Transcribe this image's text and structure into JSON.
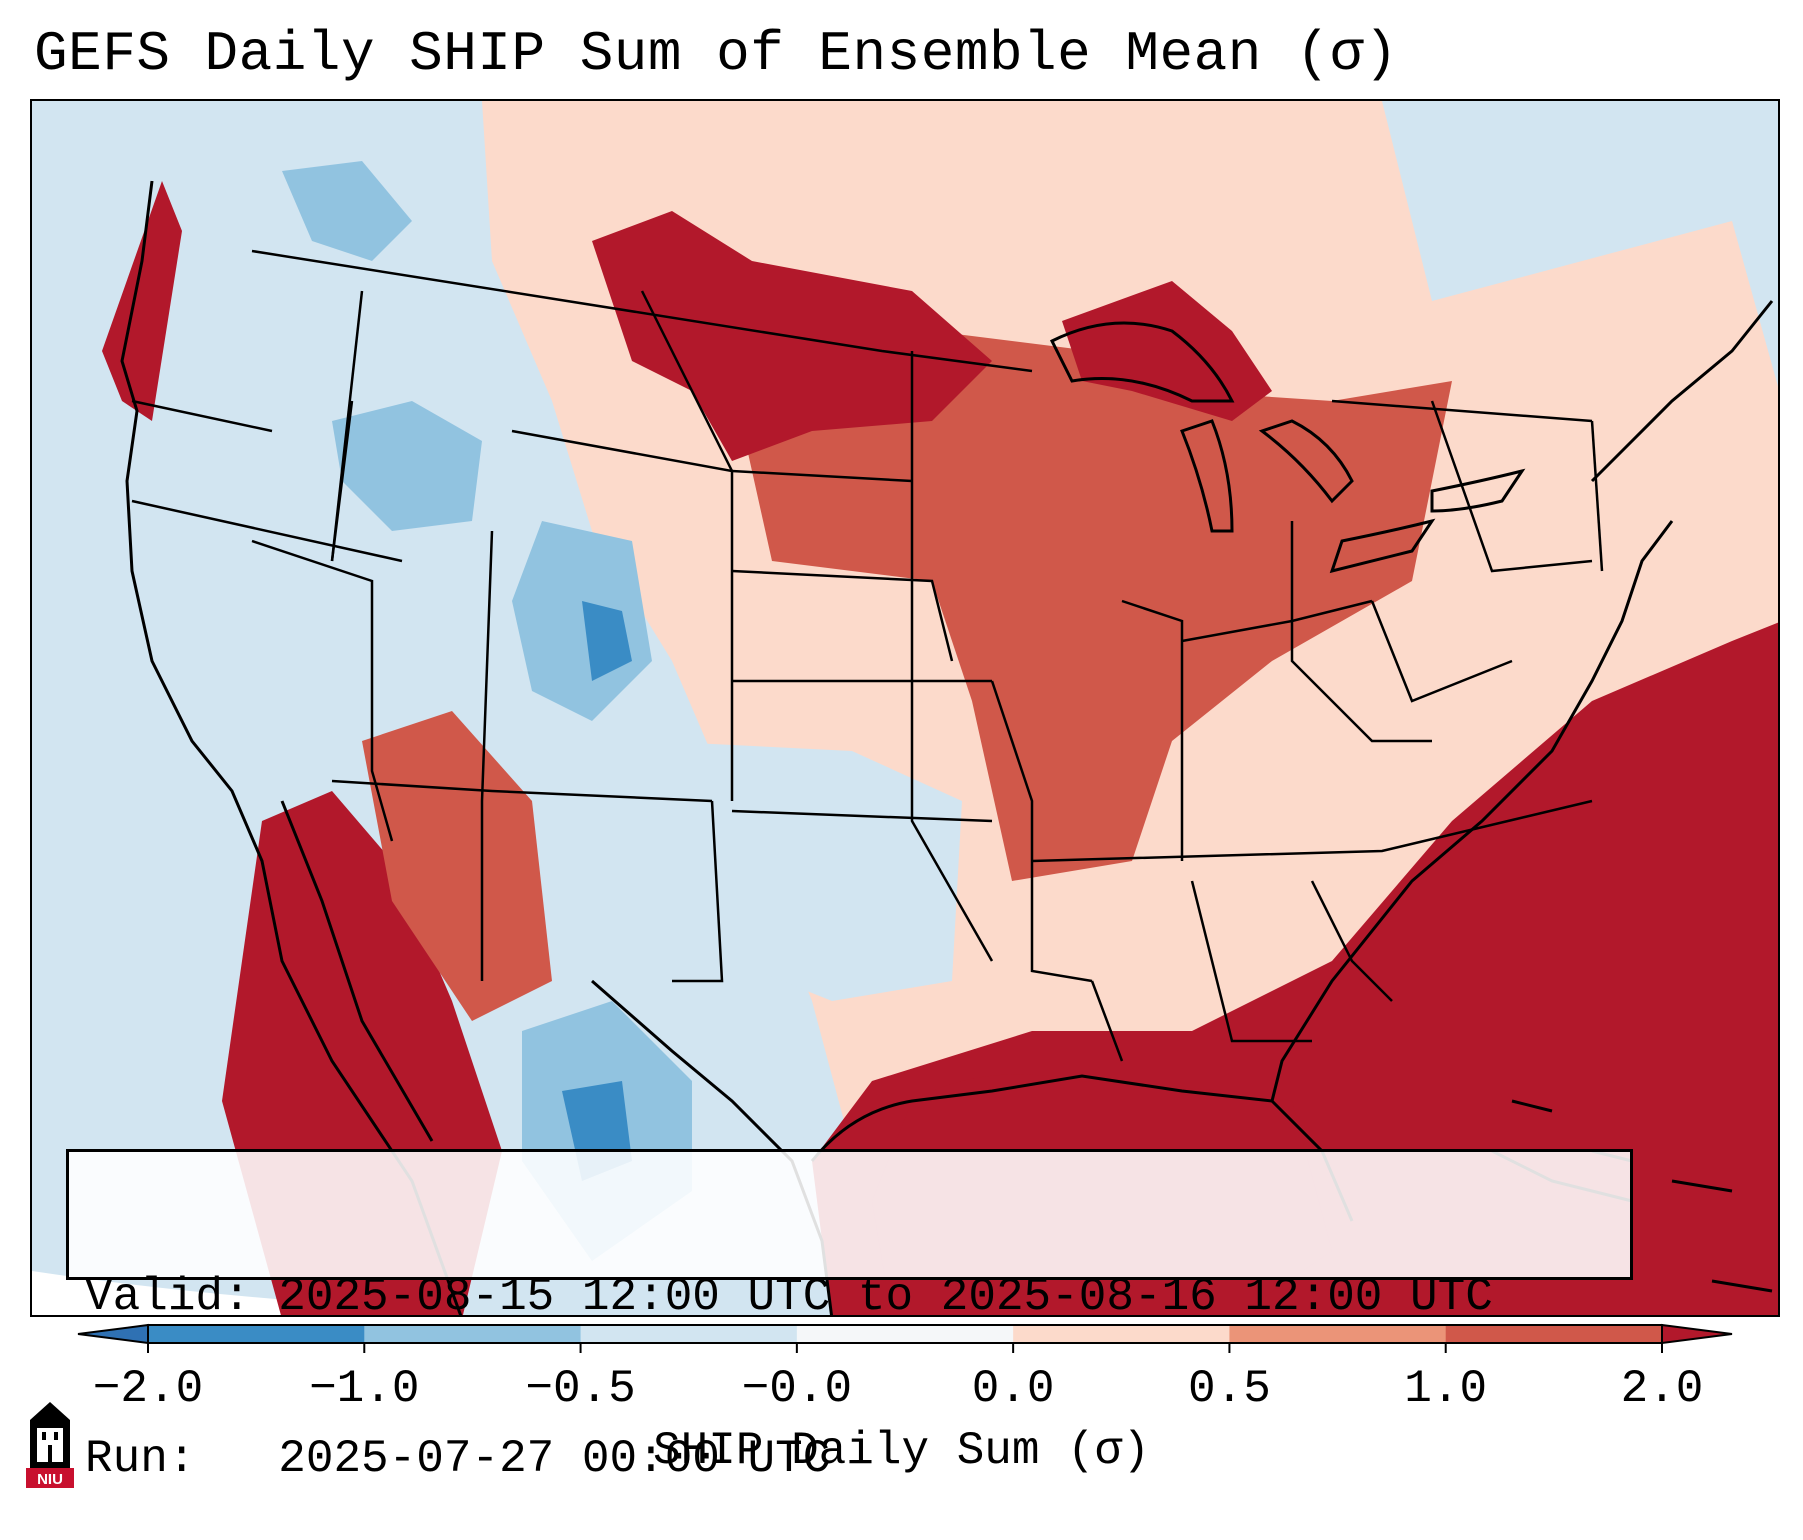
{
  "title": "GEFS Daily SHIP Sum of Ensemble Mean (σ)",
  "info": {
    "valid_line": "Valid: 2025-08-15 12:00 UTC to 2025-08-16 12:00 UTC",
    "run_line": "Run:   2025-07-27 00:00 UTC"
  },
  "colorbar": {
    "label": "SHIP Daily Sum (σ)",
    "bounds": [
      -2.0,
      -1.0,
      -0.5,
      -0.0,
      0.0,
      0.5,
      1.0,
      2.0
    ],
    "tick_labels": [
      "−2.0",
      "−1.0",
      "−0.5",
      "−0.0",
      "0.0",
      "0.5",
      "1.0",
      "2.0"
    ],
    "colors": [
      "#3a8cc5",
      "#91c3e0",
      "#d2e5f1",
      "#f5f7f9",
      "#fcdacb",
      "#eb9478",
      "#d0584a"
    ],
    "under_color": "#2f71b3",
    "over_color": "#b2182b",
    "extend": "both"
  },
  "map_colors": {
    "ocean_pacific": "#d2e5f1",
    "ocean_atlantic": "#b2182b",
    "outside_domain": "#ffffff",
    "boundary_line": "#000000"
  },
  "logo": {
    "text": "NIU",
    "color": "#c8102e"
  }
}
